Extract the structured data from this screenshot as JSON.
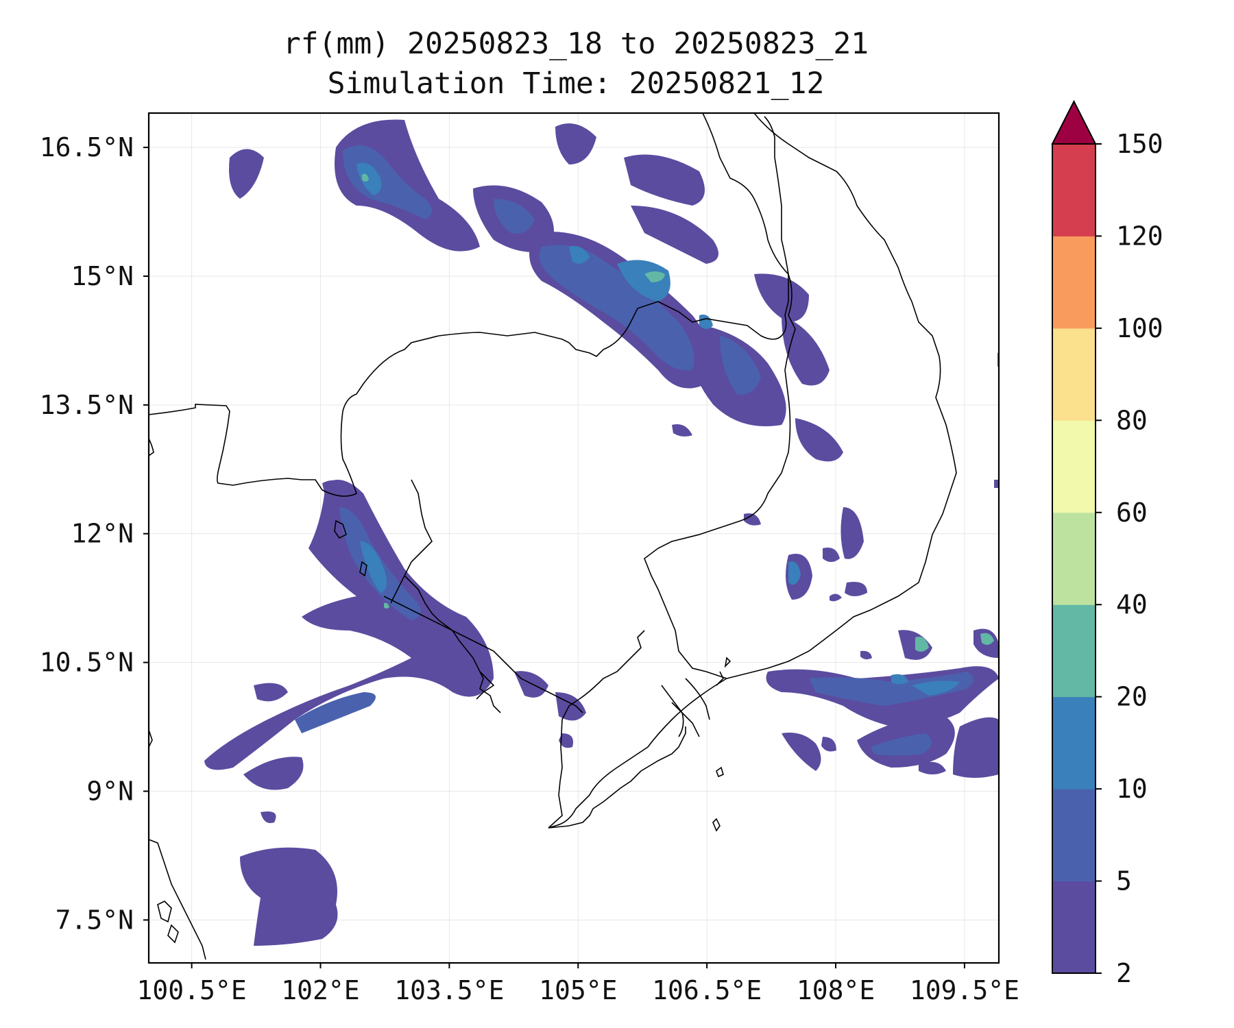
{
  "title": {
    "line1": "rf(mm) 20250823_18 to 20250823_21",
    "line2": "Simulation Time: 20250821_12"
  },
  "map": {
    "lon_range": [
      100.0,
      109.9
    ],
    "lat_range": [
      7.0,
      16.9
    ],
    "lon_ticks": [
      {
        "value": 100.5,
        "label": "100.5°E"
      },
      {
        "value": 102.0,
        "label": "102°E"
      },
      {
        "value": 103.5,
        "label": "103.5°E"
      },
      {
        "value": 105.0,
        "label": "105°E"
      },
      {
        "value": 106.5,
        "label": "106.5°E"
      },
      {
        "value": 108.0,
        "label": "108°E"
      },
      {
        "value": 109.5,
        "label": "109.5°E"
      }
    ],
    "lat_ticks": [
      {
        "value": 16.5,
        "label": "16.5°N"
      },
      {
        "value": 15.0,
        "label": "15°N"
      },
      {
        "value": 13.5,
        "label": "13.5°N"
      },
      {
        "value": 12.0,
        "label": "12°N"
      },
      {
        "value": 10.5,
        "label": "10.5°N"
      },
      {
        "value": 9.0,
        "label": "9°N"
      },
      {
        "value": 7.5,
        "label": "7.5°N"
      }
    ],
    "grid": true
  },
  "colorbar": {
    "levels": [
      "2",
      "5",
      "10",
      "20",
      "40",
      "60",
      "80",
      "100",
      "120",
      "150"
    ],
    "colors": [
      "#5b4ca0",
      "#4a62ae",
      "#3a80bb",
      "#62b8a5",
      "#bde2a0",
      "#f2f8ac",
      "#fbe08d",
      "#f99b5d",
      "#d53e4f"
    ],
    "extend_color": "#9e0142",
    "extend": "max"
  },
  "rain_colors": {
    "c2_5": "#5b4ca0",
    "c5_10": "#4a62ae",
    "c10_20": "#3a80bb",
    "c20_40": "#62b8a5"
  }
}
